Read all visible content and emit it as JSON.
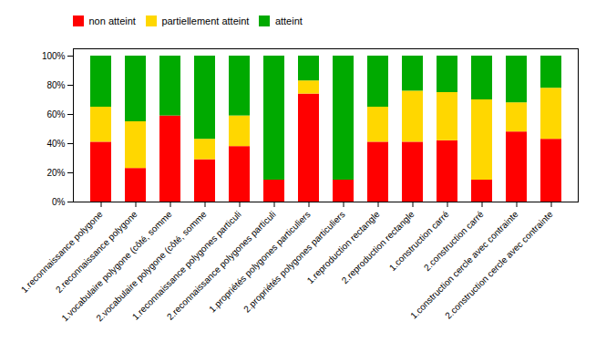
{
  "chart_data": {
    "type": "bar",
    "stacked": true,
    "categories": [
      "1.reconnaissance polygone",
      "2.reconnaissance polygone",
      "1.vocabulaire polygone (côté, somme",
      "2.vocabulaire polygone (côté, somme",
      "1.reconnaissance polygones particuli",
      "2.reconnaissance polygones particuli",
      "1.propriétés polygones particuliers",
      "2.propriétés polygones particuliers",
      "1.reproduction rectangle",
      "2.reproduction rectangle",
      "1.construction carré",
      "2.construction carré",
      "1.construction cercle avec contrainte",
      "2.construction cercle avec contrainte"
    ],
    "series": [
      {
        "name": "non atteint",
        "color": "#FF0000",
        "values": [
          0.41,
          0.23,
          0.59,
          0.29,
          0.38,
          0.15,
          0.74,
          0.15,
          0.41,
          0.41,
          0.42,
          0.15,
          0.48,
          0.43
        ]
      },
      {
        "name": "partiellement atteint",
        "color": "#FFD700",
        "values": [
          0.24,
          0.32,
          0.0,
          0.14,
          0.21,
          0.0,
          0.09,
          0.0,
          0.24,
          0.35,
          0.33,
          0.55,
          0.2,
          0.35
        ]
      },
      {
        "name": "atteint",
        "color": "#00AA00",
        "values": [
          0.35,
          0.45,
          0.41,
          0.57,
          0.41,
          0.85,
          0.17,
          0.85,
          0.35,
          0.24,
          0.25,
          0.3,
          0.32,
          0.22
        ]
      }
    ],
    "ylim": [
      0,
      1.05
    ],
    "yticks": [
      {
        "value": 0,
        "label": "0%"
      },
      {
        "value": 0.2,
        "label": "20%"
      },
      {
        "value": 0.4,
        "label": "40%"
      },
      {
        "value": 0.6,
        "label": "60%"
      },
      {
        "value": 0.8,
        "label": "80%"
      },
      {
        "value": 1,
        "label": "100%"
      }
    ],
    "grid": false,
    "legend": "top"
  }
}
